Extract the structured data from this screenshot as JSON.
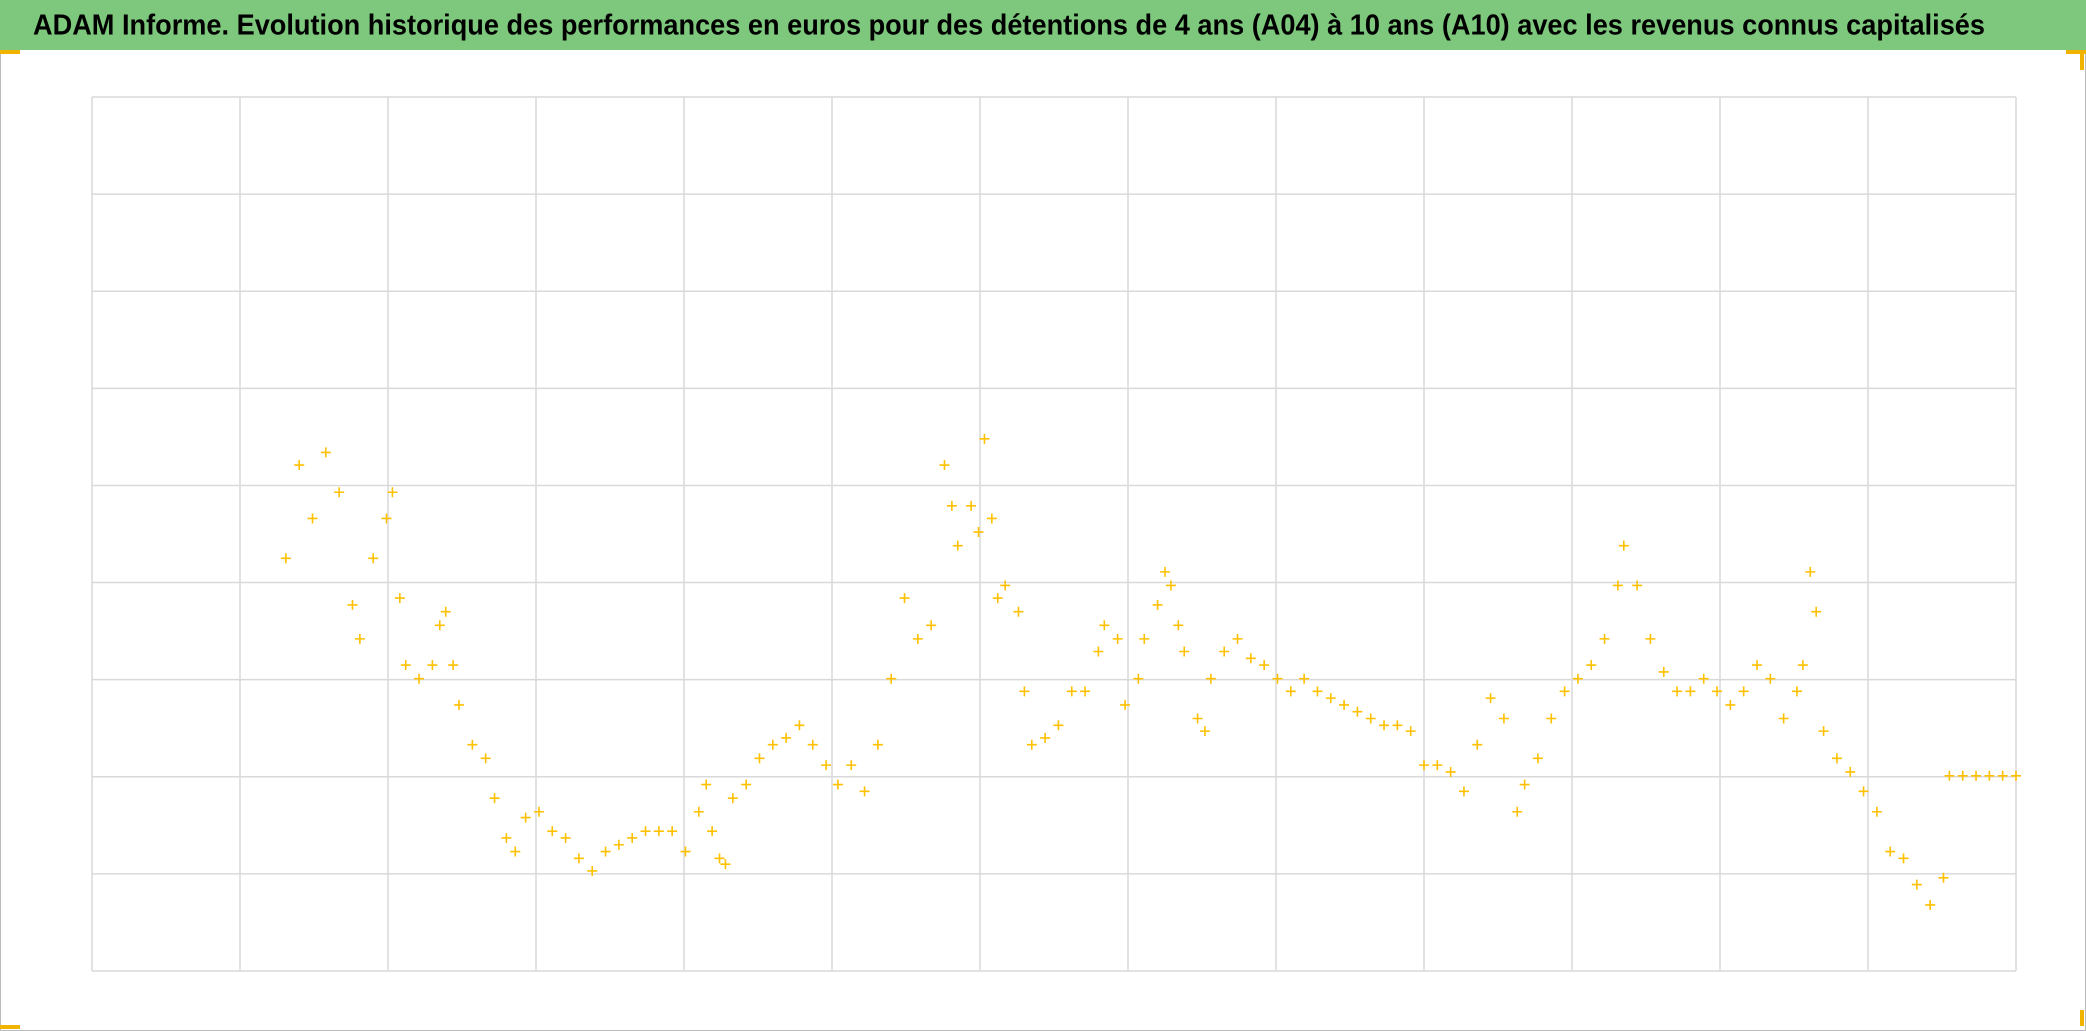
{
  "chart_data": {
    "type": "scatter",
    "title": "ADAM Informe. Evolution historique des performances en euros pour des détentions de 4 ans (A04) à 10 ans (A10) avec les revenus connus capitalisés",
    "xlim": [
      0,
      13
    ],
    "ylim": [
      0,
      9
    ],
    "xticks": [
      0,
      1,
      2,
      3,
      4,
      5,
      6,
      7,
      8,
      9,
      10,
      11,
      12,
      13
    ],
    "yticks": [
      0,
      1,
      2,
      3,
      4,
      5,
      6,
      7,
      8,
      9
    ],
    "grid": true,
    "marker": "+",
    "series": [
      {
        "color": "#ffc000",
        "x": [
          1.31,
          1.4,
          1.49,
          1.58,
          1.67,
          1.76,
          1.81,
          1.9,
          1.99,
          2.03,
          2.08,
          2.12,
          2.21,
          2.3,
          2.35,
          2.39,
          2.44,
          2.48,
          2.57,
          2.66,
          2.72,
          2.8,
          2.86,
          2.93,
          3.02,
          3.11,
          3.2,
          3.29,
          3.38,
          3.47,
          3.56,
          3.65,
          3.74,
          3.83,
          3.92,
          4.01,
          4.1,
          4.15,
          4.19,
          4.24,
          4.28,
          4.33,
          4.42,
          4.51,
          4.6,
          4.69,
          4.78,
          4.87,
          4.96,
          5.04,
          5.13,
          5.22,
          5.31,
          5.4,
          5.49,
          5.58,
          5.67,
          5.76,
          5.81,
          5.85,
          5.94,
          5.99,
          6.03,
          6.08,
          6.12,
          6.17,
          6.26,
          6.3,
          6.35,
          6.44,
          6.53,
          6.62,
          6.71,
          6.8,
          6.84,
          6.93,
          6.98,
          7.07,
          7.11,
          7.2,
          7.25,
          7.29,
          7.34,
          7.38,
          7.47,
          7.52,
          7.56,
          7.65,
          7.74,
          7.83,
          7.92,
          8.01,
          8.1,
          8.19,
          8.28,
          8.37,
          8.46,
          8.55,
          8.64,
          8.73,
          8.82,
          8.91,
          9.0,
          9.09,
          9.18,
          9.27,
          9.36,
          9.45,
          9.54,
          9.63,
          9.68,
          9.77,
          9.86,
          9.95,
          10.04,
          10.13,
          10.22,
          10.31,
          10.35,
          10.44,
          10.53,
          10.62,
          10.71,
          10.8,
          10.89,
          10.98,
          11.07,
          11.16,
          11.25,
          11.34,
          11.43,
          11.52,
          11.56,
          11.61,
          11.65,
          11.7,
          11.79,
          11.88,
          11.97,
          12.06,
          12.15,
          12.24,
          12.33,
          12.42,
          12.51,
          12.55,
          12.64,
          12.73,
          12.82,
          12.91,
          13.0
        ],
        "values": [
          4.25,
          5.21,
          4.66,
          5.34,
          4.93,
          3.77,
          3.42,
          4.25,
          4.66,
          4.93,
          3.84,
          3.15,
          3.01,
          3.15,
          3.56,
          3.7,
          3.15,
          2.74,
          2.33,
          2.19,
          1.78,
          1.37,
          1.23,
          1.58,
          1.64,
          1.44,
          1.37,
          1.16,
          1.03,
          1.23,
          1.3,
          1.37,
          1.44,
          1.44,
          1.44,
          1.23,
          1.64,
          1.92,
          1.44,
          1.16,
          1.1,
          1.78,
          1.92,
          2.19,
          2.33,
          2.4,
          2.53,
          2.33,
          2.12,
          1.92,
          2.12,
          1.85,
          2.33,
          3.01,
          3.84,
          3.42,
          3.56,
          5.21,
          4.79,
          4.38,
          4.79,
          4.52,
          5.48,
          4.66,
          3.84,
          3.97,
          3.7,
          2.88,
          2.33,
          2.4,
          2.53,
          2.88,
          2.88,
          3.29,
          3.56,
          3.42,
          2.74,
          3.01,
          3.42,
          3.77,
          4.11,
          3.97,
          3.56,
          3.29,
          2.6,
          2.47,
          3.01,
          3.29,
          3.42,
          3.22,
          3.15,
          3.01,
          2.88,
          3.01,
          2.88,
          2.81,
          2.74,
          2.67,
          2.6,
          2.53,
          2.53,
          2.47,
          2.12,
          2.12,
          2.05,
          1.85,
          2.33,
          2.81,
          2.6,
          1.64,
          1.92,
          2.19,
          2.6,
          2.88,
          3.01,
          3.15,
          3.42,
          3.97,
          4.38,
          3.97,
          3.42,
          3.08,
          2.88,
          2.88,
          3.01,
          2.88,
          2.74,
          2.88,
          3.15,
          3.01,
          2.6,
          2.88,
          3.15,
          4.11,
          3.7,
          2.47,
          2.19,
          2.05,
          1.85,
          1.64,
          1.23,
          1.16,
          0.89,
          0.68,
          0.96,
          2.01,
          2.01,
          2.01,
          2.01,
          2.01,
          2.01
        ]
      }
    ]
  }
}
